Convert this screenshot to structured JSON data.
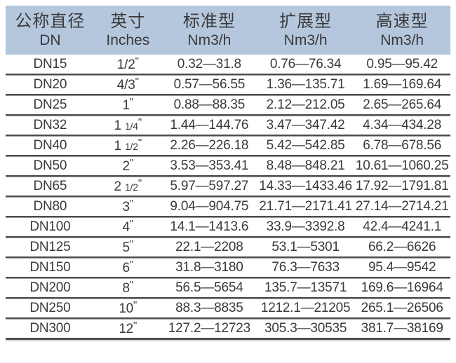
{
  "colors": {
    "header_bg": "#b5c7dd",
    "text": "#3a3a3a",
    "separator_dark": "#4d4d4d",
    "separator_light": "#9e9e9e",
    "page_bg": "#ffffff"
  },
  "table": {
    "inch_mark": "\"",
    "columns": [
      {
        "line1": "公称直径",
        "line2": "DN"
      },
      {
        "line1": "英寸",
        "line2": "Inches"
      },
      {
        "line1": "标准型",
        "line2": "Nm3/h"
      },
      {
        "line1": "扩展型",
        "line2": "Nm3/h"
      },
      {
        "line1": "高速型",
        "line2": "Nm3/h"
      }
    ],
    "rows": [
      {
        "dn": "DN15",
        "inch": "1/2",
        "standard": "0.32—31.8",
        "extended": "0.76—76.34",
        "high_speed": "0.95—95.42"
      },
      {
        "dn": "DN20",
        "inch": "4/3",
        "standard": "0.57—56.55",
        "extended": "1.36—135.71",
        "high_speed": "1.69—169.64"
      },
      {
        "dn": "DN25",
        "inch": "1",
        "standard": "0.88—88.35",
        "extended": "2.12—212.05",
        "high_speed": "2.65—265.64"
      },
      {
        "dn": "DN32",
        "inch": "1 1/4",
        "standard": "1.44—144.76",
        "extended": "3.47—347.42",
        "high_speed": "4.34—434.28"
      },
      {
        "dn": "DN40",
        "inch": "1 1/2",
        "standard": "2.26—226.18",
        "extended": "5.42—542.85",
        "high_speed": "6.78—678.56"
      },
      {
        "dn": "DN50",
        "inch": "2",
        "standard": "3.53—353.41",
        "extended": "8.48—848.21",
        "high_speed": "10.61—1060.25"
      },
      {
        "dn": "DN65",
        "inch": "2 1/2",
        "standard": "5.97—597.27",
        "extended": "14.33—1433.46",
        "high_speed": "17.92—1791.81"
      },
      {
        "dn": "DN80",
        "inch": "3",
        "standard": "9.04—904.75",
        "extended": "21.71—2171.41",
        "high_speed": "27.14—2714.21"
      },
      {
        "dn": "DN100",
        "inch": "4",
        "standard": "14.1—1413.6",
        "extended": "33.9—3392.8",
        "high_speed": "42.4—4241.1"
      },
      {
        "dn": "DN125",
        "inch": "5",
        "standard": "22.1—2208",
        "extended": "53.1—5301",
        "high_speed": "66.2—6626"
      },
      {
        "dn": "DN150",
        "inch": "6",
        "standard": "31.8—3180",
        "extended": "76.3—7633",
        "high_speed": "95.4—9542"
      },
      {
        "dn": "DN200",
        "inch": "8",
        "standard": "56.5—5654",
        "extended": "135.7—13571",
        "high_speed": "169.6—16964"
      },
      {
        "dn": "DN250",
        "inch": "10",
        "standard": "88.3—8835",
        "extended": "1212.1—21205",
        "high_speed": "265.1—26506"
      },
      {
        "dn": "DN300",
        "inch": "12",
        "standard": "127.2—12723",
        "extended": "305.3—30535",
        "high_speed": "381.7—38169"
      }
    ]
  }
}
